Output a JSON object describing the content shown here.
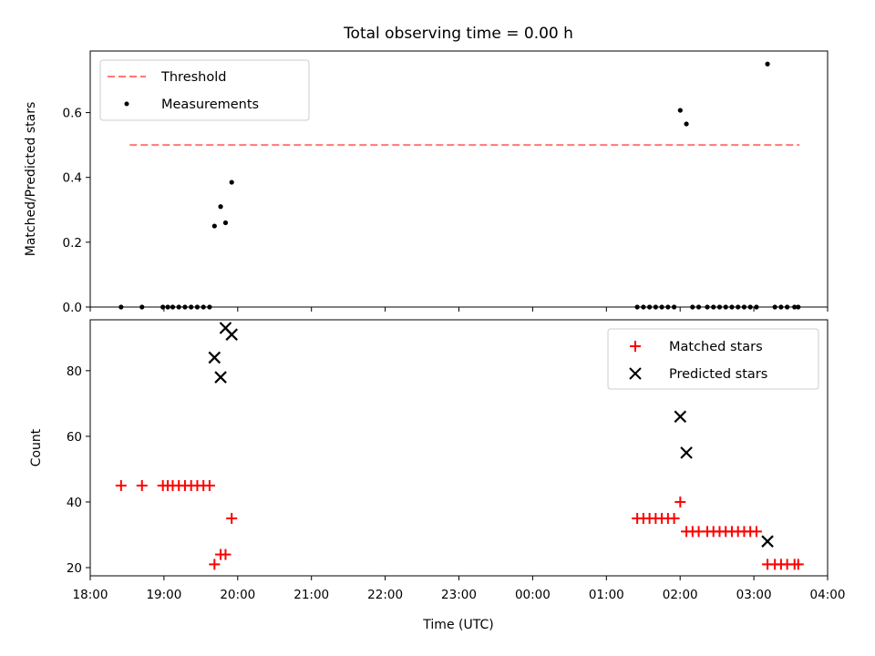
{
  "chart_data": [
    {
      "type": "scatter",
      "title": "Total observing time = 0.00 h",
      "xlabel": "",
      "ylabel": "Matched/Predicted stars",
      "x_unit": "hours since 18:00 UTC",
      "xlim_labels": [
        "18:00",
        "04:00"
      ],
      "ylim": [
        0,
        0.79
      ],
      "yticks": [
        0.0,
        0.2,
        0.4,
        0.6
      ],
      "ytick_labels": [
        "0.0",
        "0.2",
        "0.4",
        "0.6"
      ],
      "legend": {
        "placement": "top-left",
        "entries": [
          "Threshold",
          "Measurements"
        ]
      },
      "series": [
        {
          "name": "Threshold",
          "style": "dashed-line",
          "color": "#ff7777",
          "points": [
            {
              "t": "18:30",
              "y": 0.5
            },
            {
              "t": "03:35",
              "y": 0.5
            }
          ]
        },
        {
          "name": "Measurements",
          "style": "dot",
          "color": "#000000",
          "points": [
            {
              "t": "18:23",
              "y": 0.0
            },
            {
              "t": "18:40",
              "y": 0.0
            },
            {
              "t": "18:57",
              "y": 0.0
            },
            {
              "t": "19:01",
              "y": 0.0
            },
            {
              "t": "19:05",
              "y": 0.0
            },
            {
              "t": "19:10",
              "y": 0.0
            },
            {
              "t": "19:15",
              "y": 0.0
            },
            {
              "t": "19:20",
              "y": 0.0
            },
            {
              "t": "19:25",
              "y": 0.0
            },
            {
              "t": "19:30",
              "y": 0.0
            },
            {
              "t": "19:35",
              "y": 0.0
            },
            {
              "t": "19:39",
              "y": 0.25
            },
            {
              "t": "19:44",
              "y": 0.31
            },
            {
              "t": "19:48",
              "y": 0.26
            },
            {
              "t": "19:53",
              "y": 0.385
            },
            {
              "t": "01:23",
              "y": 0.0
            },
            {
              "t": "01:28",
              "y": 0.0
            },
            {
              "t": "01:33",
              "y": 0.0
            },
            {
              "t": "01:38",
              "y": 0.0
            },
            {
              "t": "01:43",
              "y": 0.0
            },
            {
              "t": "01:48",
              "y": 0.0
            },
            {
              "t": "01:53",
              "y": 0.0
            },
            {
              "t": "01:58",
              "y": 0.607
            },
            {
              "t": "02:03",
              "y": 0.565
            },
            {
              "t": "02:08",
              "y": 0.0
            },
            {
              "t": "02:13",
              "y": 0.0
            },
            {
              "t": "02:20",
              "y": 0.0
            },
            {
              "t": "02:25",
              "y": 0.0
            },
            {
              "t": "02:30",
              "y": 0.0
            },
            {
              "t": "02:35",
              "y": 0.0
            },
            {
              "t": "02:40",
              "y": 0.0
            },
            {
              "t": "02:45",
              "y": 0.0
            },
            {
              "t": "02:50",
              "y": 0.0
            },
            {
              "t": "02:55",
              "y": 0.0
            },
            {
              "t": "03:00",
              "y": 0.0
            },
            {
              "t": "03:09",
              "y": 0.75
            },
            {
              "t": "03:15",
              "y": 0.0
            },
            {
              "t": "03:20",
              "y": 0.0
            },
            {
              "t": "03:25",
              "y": 0.0
            },
            {
              "t": "03:31",
              "y": 0.0
            },
            {
              "t": "03:34",
              "y": 0.0
            }
          ]
        }
      ]
    },
    {
      "type": "scatter",
      "title": "",
      "xlabel": "Time (UTC)",
      "ylabel": "Count",
      "xticks": [
        "18:00",
        "19:00",
        "20:00",
        "21:00",
        "22:00",
        "23:00",
        "00:00",
        "01:00",
        "02:00",
        "03:00",
        "04:00"
      ],
      "ylim": [
        17.5,
        95.5
      ],
      "yticks": [
        20,
        40,
        60,
        80
      ],
      "ytick_labels": [
        "20",
        "40",
        "60",
        "80"
      ],
      "legend": {
        "placement": "top-right",
        "entries": [
          "Matched stars",
          "Predicted stars"
        ]
      },
      "series": [
        {
          "name": "Matched stars",
          "style": "plus",
          "color": "#ff0000",
          "points": [
            {
              "t": "18:23",
              "y": 45
            },
            {
              "t": "18:40",
              "y": 45
            },
            {
              "t": "18:57",
              "y": 45
            },
            {
              "t": "19:01",
              "y": 45
            },
            {
              "t": "19:05",
              "y": 45
            },
            {
              "t": "19:10",
              "y": 45
            },
            {
              "t": "19:15",
              "y": 45
            },
            {
              "t": "19:20",
              "y": 45
            },
            {
              "t": "19:25",
              "y": 45
            },
            {
              "t": "19:30",
              "y": 45
            },
            {
              "t": "19:35",
              "y": 45
            },
            {
              "t": "19:39",
              "y": 21
            },
            {
              "t": "19:44",
              "y": 24
            },
            {
              "t": "19:48",
              "y": 24
            },
            {
              "t": "19:53",
              "y": 35
            },
            {
              "t": "01:23",
              "y": 35
            },
            {
              "t": "01:28",
              "y": 35
            },
            {
              "t": "01:33",
              "y": 35
            },
            {
              "t": "01:38",
              "y": 35
            },
            {
              "t": "01:43",
              "y": 35
            },
            {
              "t": "01:48",
              "y": 35
            },
            {
              "t": "01:53",
              "y": 35
            },
            {
              "t": "01:58",
              "y": 40
            },
            {
              "t": "02:03",
              "y": 31
            },
            {
              "t": "02:08",
              "y": 31
            },
            {
              "t": "02:13",
              "y": 31
            },
            {
              "t": "02:20",
              "y": 31
            },
            {
              "t": "02:25",
              "y": 31
            },
            {
              "t": "02:30",
              "y": 31
            },
            {
              "t": "02:35",
              "y": 31
            },
            {
              "t": "02:40",
              "y": 31
            },
            {
              "t": "02:45",
              "y": 31
            },
            {
              "t": "02:50",
              "y": 31
            },
            {
              "t": "02:55",
              "y": 31
            },
            {
              "t": "03:00",
              "y": 31
            },
            {
              "t": "03:09",
              "y": 21
            },
            {
              "t": "03:15",
              "y": 21
            },
            {
              "t": "03:20",
              "y": 21
            },
            {
              "t": "03:25",
              "y": 21
            },
            {
              "t": "03:31",
              "y": 21
            },
            {
              "t": "03:34",
              "y": 21
            }
          ]
        },
        {
          "name": "Predicted stars",
          "style": "x",
          "color": "#000000",
          "points": [
            {
              "t": "19:39",
              "y": 84
            },
            {
              "t": "19:44",
              "y": 78
            },
            {
              "t": "19:48",
              "y": 93
            },
            {
              "t": "19:53",
              "y": 91
            },
            {
              "t": "01:58",
              "y": 66
            },
            {
              "t": "02:03",
              "y": 55
            },
            {
              "t": "03:09",
              "y": 28
            }
          ]
        }
      ]
    }
  ]
}
